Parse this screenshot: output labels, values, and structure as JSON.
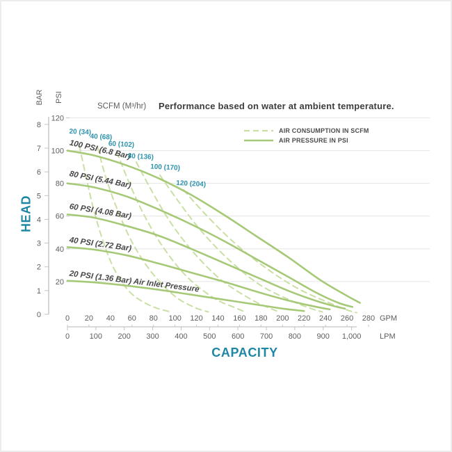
{
  "chart_data": {
    "type": "line",
    "title": "Performance based on water at ambient temperature.",
    "units_note": "SCFM (M³/hr)",
    "xlabel": "CAPACITY",
    "ylabel": "HEAD",
    "x_axis": {
      "gpm": {
        "label": "GPM",
        "ticks": [
          0,
          20,
          40,
          60,
          80,
          100,
          120,
          140,
          160,
          180,
          200,
          220,
          240,
          260,
          280
        ]
      },
      "lpm": {
        "label": "LPM",
        "ticks": [
          0,
          100,
          200,
          300,
          400,
          500,
          600,
          700,
          800,
          900,
          1000
        ],
        "tick_labels": [
          "0",
          "100",
          "200",
          "300",
          "400",
          "500",
          "600",
          "700",
          "800",
          "900",
          "1,000"
        ]
      }
    },
    "y_axis": {
      "psi": {
        "label": "PSI",
        "ticks": [
          120,
          100,
          80,
          60,
          40,
          20
        ]
      },
      "bar": {
        "label": "BAR",
        "ticks": [
          8,
          7,
          6,
          5,
          4,
          3,
          2,
          1,
          0
        ]
      }
    },
    "legend": [
      {
        "label": "AIR CONSUMPTION IN SCFM",
        "style": "dashed"
      },
      {
        "label": "AIR PRESSURE IN PSI",
        "style": "solid"
      }
    ],
    "grid": true,
    "x_range_gpm": [
      0,
      280
    ],
    "y_range_psi": [
      0,
      120
    ],
    "pressure_curves": [
      {
        "name": "100-psi",
        "label": "100 PSI (6.8 Bar)",
        "label_anchor": {
          "gpm": 1.5,
          "psi": 103.5,
          "rotate": 13
        },
        "points": [
          [
            0,
            100
          ],
          [
            25,
            97
          ],
          [
            55,
            91
          ],
          [
            85,
            83
          ],
          [
            115,
            73
          ],
          [
            145,
            61
          ],
          [
            175,
            48
          ],
          [
            205,
            35
          ],
          [
            235,
            21
          ],
          [
            258,
            12
          ],
          [
            272,
            7
          ]
        ]
      },
      {
        "name": "80-psi",
        "label": "80 PSI (5.44 Bar)",
        "label_anchor": {
          "gpm": 1.5,
          "psi": 84.5,
          "rotate": 11
        },
        "points": [
          [
            0,
            80
          ],
          [
            25,
            77.5
          ],
          [
            55,
            72
          ],
          [
            85,
            64
          ],
          [
            115,
            55
          ],
          [
            145,
            45
          ],
          [
            175,
            34
          ],
          [
            205,
            23
          ],
          [
            232,
            13
          ],
          [
            252,
            7
          ],
          [
            265,
            4.5
          ]
        ]
      },
      {
        "name": "60-psi",
        "label": "60 PSI (4.08 Bar)",
        "label_anchor": {
          "gpm": 1.5,
          "psi": 64.5,
          "rotate": 9
        },
        "points": [
          [
            0,
            61
          ],
          [
            25,
            59
          ],
          [
            55,
            54
          ],
          [
            85,
            48
          ],
          [
            115,
            40
          ],
          [
            145,
            31.5
          ],
          [
            175,
            23
          ],
          [
            205,
            14.5
          ],
          [
            230,
            8.5
          ],
          [
            248,
            5
          ],
          [
            258,
            3.5
          ]
        ]
      },
      {
        "name": "40-psi",
        "label": "40 PSI (2.72 Bar)",
        "label_anchor": {
          "gpm": 1.5,
          "psi": 44,
          "rotate": 8
        },
        "points": [
          [
            0,
            41
          ],
          [
            25,
            39.5
          ],
          [
            55,
            36
          ],
          [
            85,
            31
          ],
          [
            115,
            25.5
          ],
          [
            145,
            20
          ],
          [
            175,
            14
          ],
          [
            205,
            8.5
          ],
          [
            228,
            5
          ],
          [
            244,
            3
          ]
        ]
      },
      {
        "name": "20-psi",
        "label": "20 PSI (1.36 Bar) Air Inlet Pressure",
        "label_anchor": {
          "gpm": 1.5,
          "psi": 23.5,
          "rotate": 7
        },
        "points": [
          [
            0,
            20.5
          ],
          [
            25,
            19.5
          ],
          [
            55,
            17.5
          ],
          [
            85,
            15
          ],
          [
            115,
            12
          ],
          [
            145,
            9
          ],
          [
            175,
            6
          ],
          [
            200,
            3.5
          ],
          [
            220,
            2
          ]
        ]
      }
    ],
    "consumption_curves": [
      {
        "name": "20-scfm",
        "label": "20 (34)",
        "label_anchor": {
          "gpm": 1.5,
          "psi": 110.5,
          "rotate": 3
        },
        "points": [
          [
            11,
            103
          ],
          [
            17,
            85
          ],
          [
            24,
            65
          ],
          [
            33,
            45
          ],
          [
            44,
            27
          ],
          [
            59,
            13
          ],
          [
            78,
            5
          ],
          [
            96,
            1.5
          ]
        ]
      },
      {
        "name": "40-scfm",
        "label": "40 (68)",
        "label_anchor": {
          "gpm": 21,
          "psi": 107.5,
          "rotate": 3
        },
        "points": [
          [
            28,
            102
          ],
          [
            36,
            83
          ],
          [
            47,
            63
          ],
          [
            61,
            43
          ],
          [
            79,
            25
          ],
          [
            100,
            11
          ],
          [
            119,
            4
          ],
          [
            131,
            1.5
          ]
        ]
      },
      {
        "name": "60-scfm",
        "label": "60 (102)",
        "label_anchor": {
          "gpm": 38,
          "psi": 103,
          "rotate": 3
        },
        "points": [
          [
            46,
            99
          ],
          [
            57,
            81
          ],
          [
            71,
            61
          ],
          [
            89,
            41
          ],
          [
            111,
            23
          ],
          [
            136,
            10
          ],
          [
            156,
            4
          ],
          [
            165,
            1.5
          ]
        ]
      },
      {
        "name": "80-scfm",
        "label": "80 (136)",
        "label_anchor": {
          "gpm": 56,
          "psi": 95.5,
          "rotate": 3
        },
        "points": [
          [
            64,
            93
          ],
          [
            77,
            77
          ],
          [
            95,
            57
          ],
          [
            117,
            38
          ],
          [
            143,
            21
          ],
          [
            171,
            9
          ],
          [
            189,
            3.5
          ],
          [
            197,
            1.5
          ]
        ]
      },
      {
        "name": "100-scfm",
        "label": "100 (170)",
        "label_anchor": {
          "gpm": 77,
          "psi": 89,
          "rotate": 3
        },
        "points": [
          [
            86,
            85
          ],
          [
            101,
            71
          ],
          [
            123,
            52
          ],
          [
            149,
            34
          ],
          [
            179,
            18
          ],
          [
            211,
            7.5
          ],
          [
            229,
            3
          ],
          [
            237,
            1.5
          ]
        ]
      },
      {
        "name": "120-scfm",
        "label": "120 (204)",
        "label_anchor": {
          "gpm": 101,
          "psi": 79,
          "rotate": 3
        },
        "points": [
          [
            108,
            76
          ],
          [
            127,
            62
          ],
          [
            153,
            45
          ],
          [
            183,
            29
          ],
          [
            215,
            15.5
          ],
          [
            249,
            5.5
          ],
          [
            263,
            2
          ],
          [
            269,
            1
          ]
        ]
      }
    ],
    "colors": {
      "pressure_curve": "#a6c977",
      "consumption_curve": "#c9dfa4",
      "accent_teal": "#1e87a4",
      "scfm_label_teal": "#2e93ae",
      "curve_label_text": "#474747",
      "tick_text": "#5d5d5d",
      "grid": "#e4e4e4",
      "axis": "#c3c3c3"
    }
  }
}
